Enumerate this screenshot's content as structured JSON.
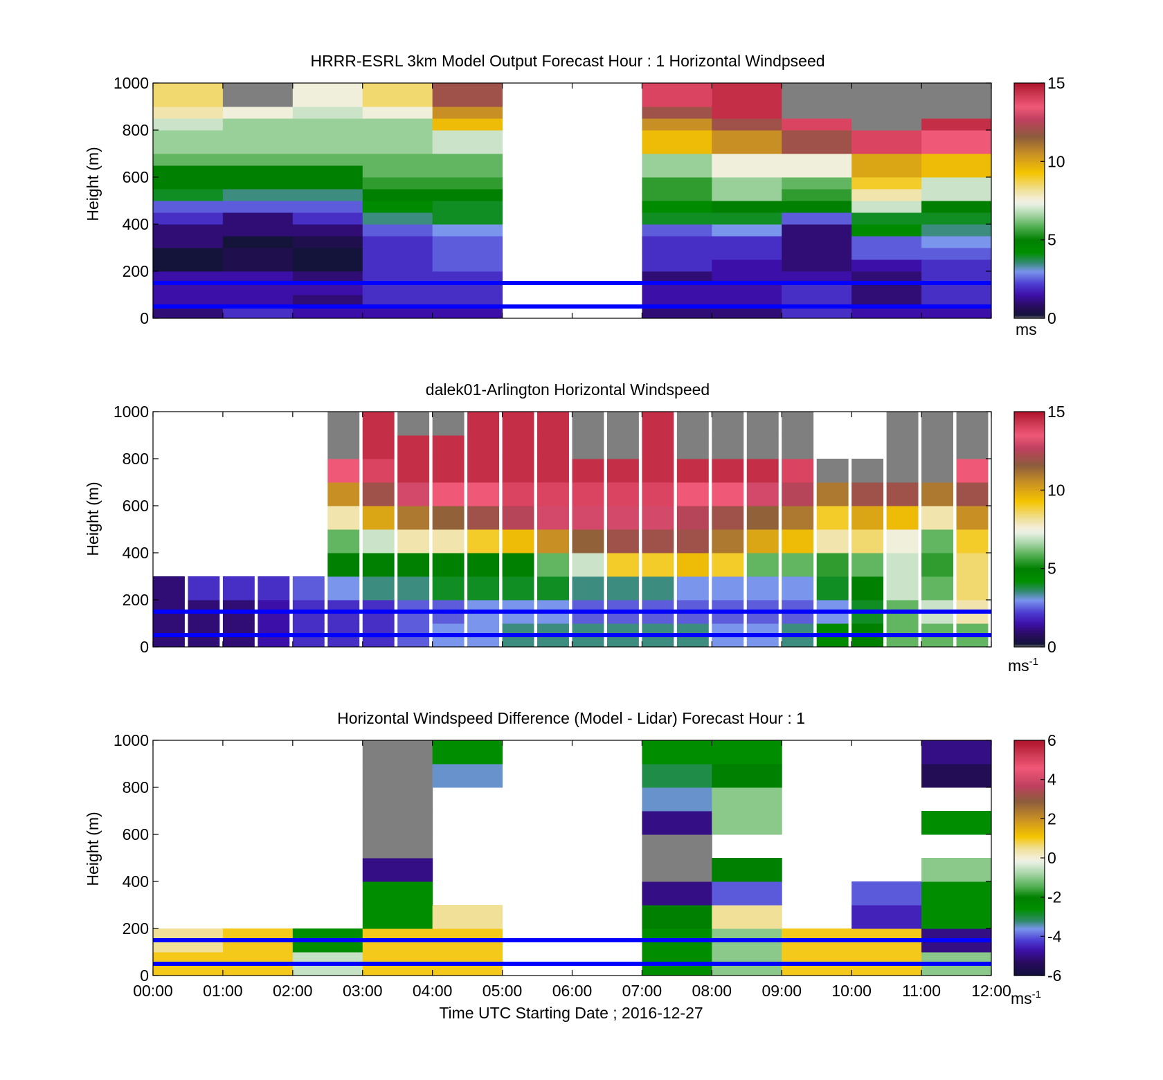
{
  "chart_data": [
    {
      "type": "heatmap",
      "title": "HRRR-ESRL 3km Model Output   Forecast Hour : 1 Horizontal Windpseed",
      "ylabel": "Height (m)",
      "xlim": [
        0,
        12
      ],
      "ylim": [
        0,
        1000
      ],
      "yticks": [
        0,
        200,
        400,
        600,
        800,
        1000
      ],
      "colorbar": {
        "range": [
          0,
          15
        ],
        "ticks": [
          0,
          5,
          10,
          15
        ],
        "unit": "ms",
        "unit_sup": ""
      },
      "reference_lines_m": [
        50,
        150
      ],
      "x_hours": [
        0,
        1,
        2,
        3,
        4,
        7,
        8,
        9,
        10,
        11
      ],
      "y_bins_m": [
        25,
        75,
        125,
        175,
        225,
        275,
        325,
        375,
        425,
        475,
        525,
        575,
        625,
        675,
        725,
        775,
        825,
        875,
        925,
        975
      ],
      "values": [
        [
          1.0,
          2.0,
          1.5,
          1.5,
          1.5,
          1.0,
          1.0,
          2.0,
          1.5,
          1.5
        ],
        [
          1.5,
          1.5,
          1.0,
          2.0,
          2.0,
          1.5,
          1.5,
          2.0,
          1.0,
          2.0
        ],
        [
          1.5,
          1.5,
          1.5,
          2.0,
          2.0,
          1.5,
          1.5,
          2.0,
          1.0,
          2.0
        ],
        [
          1.5,
          1.5,
          1.0,
          2.0,
          2.0,
          1.0,
          1.5,
          1.5,
          1.0,
          2.0
        ],
        [
          0.2,
          0.5,
          0.2,
          2.0,
          2.5,
          2.0,
          1.5,
          1.0,
          1.5,
          2.0
        ],
        [
          0.2,
          0.5,
          0.2,
          2.0,
          2.5,
          2.0,
          2.0,
          1.0,
          2.5,
          2.5
        ],
        [
          1.0,
          0.2,
          0.5,
          2.0,
          2.5,
          2.0,
          2.0,
          1.0,
          2.5,
          3.0
        ],
        [
          1.0,
          1.0,
          1.0,
          2.5,
          3.0,
          2.5,
          3.0,
          1.0,
          4.5,
          3.5
        ],
        [
          2.0,
          1.0,
          2.0,
          3.5,
          4.0,
          4.0,
          4.0,
          2.5,
          4.0,
          4.0
        ],
        [
          2.5,
          2.5,
          2.5,
          4.5,
          4.0,
          4.5,
          5.0,
          5.0,
          7.0,
          5.0
        ],
        [
          4.0,
          3.5,
          3.5,
          5.0,
          5.0,
          5.5,
          6.5,
          5.5,
          8.0,
          7.0
        ],
        [
          5.0,
          5.0,
          5.0,
          5.5,
          5.5,
          5.5,
          6.5,
          6.0,
          9.0,
          7.0
        ],
        [
          5.0,
          5.0,
          5.0,
          6.0,
          6.0,
          6.5,
          7.5,
          7.5,
          10.0,
          9.5
        ],
        [
          6.0,
          6.0,
          6.0,
          6.0,
          6.0,
          6.5,
          7.5,
          7.5,
          10.0,
          9.5
        ],
        [
          6.5,
          6.5,
          6.5,
          6.5,
          7.0,
          9.5,
          10.5,
          12.0,
          14.0,
          13.5
        ],
        [
          6.5,
          6.5,
          6.5,
          6.5,
          7.0,
          9.5,
          10.5,
          12.0,
          14.0,
          13.5
        ],
        [
          7.0,
          6.5,
          6.5,
          6.5,
          9.5,
          10.5,
          12.0,
          14.0,
          15.5,
          14.5
        ],
        [
          8.0,
          7.5,
          7.0,
          7.5,
          10.5,
          12.0,
          14.5,
          15.5,
          15.5,
          15.5
        ],
        [
          8.5,
          15.5,
          7.5,
          8.5,
          12.0,
          14.0,
          14.5,
          15.5,
          15.5,
          15.5
        ],
        [
          8.5,
          15.5,
          7.5,
          8.5,
          12.0,
          14.0,
          14.5,
          15.5,
          15.5,
          15.5
        ]
      ]
    },
    {
      "type": "heatmap",
      "title": "dalek01-Arlington  Horizontal Windspeed",
      "ylabel": "Height (m)",
      "xlim": [
        0,
        12
      ],
      "ylim": [
        0,
        1000
      ],
      "yticks": [
        0,
        200,
        400,
        600,
        800,
        1000
      ],
      "colorbar": {
        "range": [
          0,
          15
        ],
        "ticks": [
          0,
          5,
          10,
          15
        ],
        "unit": "ms",
        "unit_sup": "-1"
      },
      "reference_lines_m": [
        50,
        150
      ],
      "x_hours": [
        0,
        0.5,
        1,
        1.5,
        2,
        2.5,
        3,
        3.5,
        4,
        4.5,
        5,
        5.5,
        6,
        6.5,
        7,
        7.5,
        8,
        8.5,
        9,
        9.5,
        10,
        10.5,
        11,
        11.5
      ],
      "y_bins_m": [
        50,
        150,
        250,
        350,
        450,
        550,
        650,
        750,
        850,
        950
      ],
      "values": [
        [
          1.0,
          1.0,
          1.0,
          1.5,
          2.0,
          2.0,
          2.0,
          2.5,
          3.0,
          3.0,
          3.5,
          3.5,
          3.5,
          3.5,
          3.5,
          3.5,
          3.0,
          3.0,
          3.5,
          4.5,
          5.0,
          6.0,
          6.0,
          6.0
        ],
        [
          1.0,
          1.0,
          1.0,
          1.5,
          2.0,
          2.0,
          2.0,
          2.5,
          2.5,
          3.0,
          3.0,
          3.0,
          2.5,
          2.5,
          2.5,
          2.5,
          2.5,
          2.5,
          2.5,
          3.0,
          4.0,
          6.0,
          7.0,
          8.0
        ],
        [
          1.0,
          2.0,
          2.0,
          2.0,
          2.5,
          3.0,
          3.5,
          3.5,
          4.0,
          4.0,
          4.0,
          4.0,
          3.5,
          3.5,
          3.5,
          3.0,
          3.0,
          3.0,
          3.0,
          4.0,
          5.0,
          7.0,
          6.0,
          8.5
        ],
        [
          null,
          null,
          null,
          null,
          null,
          5.0,
          5.0,
          5.0,
          5.0,
          5.0,
          5.0,
          6.0,
          7.0,
          9.0,
          9.0,
          9.5,
          9.0,
          6.0,
          6.0,
          5.5,
          6.0,
          7.0,
          5.5,
          8.5
        ],
        [
          null,
          null,
          null,
          null,
          null,
          6.0,
          7.0,
          8.0,
          8.0,
          9.0,
          9.5,
          10.5,
          11.5,
          12.0,
          12.0,
          12.0,
          11.0,
          10.0,
          9.5,
          8.0,
          8.5,
          7.5,
          6.0,
          9.0
        ],
        [
          null,
          null,
          null,
          null,
          null,
          8.0,
          10.0,
          11.0,
          11.5,
          12.0,
          12.5,
          13.0,
          13.0,
          13.0,
          13.0,
          12.5,
          12.0,
          11.5,
          11.0,
          9.0,
          10.0,
          9.5,
          8.0,
          10.5
        ],
        [
          null,
          null,
          null,
          null,
          null,
          10.5,
          12.0,
          13.0,
          13.5,
          13.5,
          14.0,
          14.0,
          14.0,
          14.0,
          14.0,
          13.5,
          13.5,
          13.0,
          12.5,
          11.0,
          12.0,
          12.0,
          11.0,
          12.0
        ],
        [
          null,
          null,
          null,
          null,
          null,
          13.5,
          14.0,
          14.5,
          14.5,
          14.5,
          14.5,
          14.5,
          14.5,
          14.5,
          14.5,
          14.5,
          14.5,
          14.5,
          14.0,
          15.5,
          15.5,
          15.5,
          15.5,
          13.5
        ],
        [
          null,
          null,
          null,
          null,
          null,
          15.5,
          14.5,
          14.5,
          14.5,
          14.5,
          14.5,
          14.5,
          15.5,
          15.5,
          14.5,
          15.5,
          15.5,
          15.5,
          15.5,
          null,
          null,
          15.5,
          15.5,
          15.5
        ],
        [
          null,
          null,
          null,
          null,
          null,
          15.5,
          14.5,
          15.5,
          15.5,
          14.5,
          14.5,
          14.5,
          15.5,
          15.5,
          14.5,
          15.5,
          15.5,
          15.5,
          15.5,
          null,
          null,
          15.5,
          15.5,
          15.5
        ]
      ]
    },
    {
      "type": "heatmap",
      "title": "Horizontal Windspeed Difference (Model - Lidar) Forecast Hour : 1",
      "xlabel": "Time UTC  Starting Date ; 2016-12-27",
      "ylabel": "Height (m)",
      "xlim": [
        0,
        12
      ],
      "ylim": [
        0,
        1000
      ],
      "yticks": [
        0,
        200,
        400,
        600,
        800,
        1000
      ],
      "xtick_labels": [
        "00:00",
        "01:00",
        "02:00",
        "03:00",
        "04:00",
        "05:00",
        "06:00",
        "07:00",
        "08:00",
        "09:00",
        "10:00",
        "11:00",
        "12:00"
      ],
      "colorbar": {
        "range": [
          -6,
          6
        ],
        "ticks": [
          -6,
          -4,
          -2,
          0,
          2,
          4,
          6
        ],
        "unit": "ms",
        "unit_sup": "-1"
      },
      "reference_lines_m": [
        50,
        150
      ],
      "x_hours": [
        0,
        1,
        2,
        3,
        4,
        7,
        8,
        9,
        10,
        11
      ],
      "y_bins_m": [
        50,
        150,
        250,
        350,
        450,
        550,
        650,
        750,
        850,
        950
      ],
      "values": [
        [
          1.0,
          1.0,
          -0.5,
          1.0,
          1.0,
          -2.5,
          -1.0,
          1.0,
          1.0,
          -1.0
        ],
        [
          0.5,
          1.0,
          -2.5,
          1.0,
          1.0,
          -2.5,
          -1.0,
          1.0,
          1.0,
          -5.0
        ],
        [
          null,
          null,
          null,
          -2.5,
          0.5,
          -2.0,
          0.5,
          null,
          -4.5,
          -2.5
        ],
        [
          null,
          null,
          null,
          -2.5,
          null,
          -5.0,
          -4.0,
          null,
          -4.0,
          -2.5
        ],
        [
          null,
          null,
          null,
          -5.0,
          null,
          -7.0,
          -2.0,
          null,
          null,
          -1.0
        ],
        [
          null,
          null,
          null,
          -7.0,
          null,
          -7.0,
          null,
          null,
          null,
          null
        ],
        [
          null,
          null,
          null,
          -7.0,
          null,
          -5.0,
          -1.0,
          null,
          null,
          -2.5
        ],
        [
          null,
          null,
          null,
          -7.0,
          null,
          -3.5,
          -1.0,
          null,
          null,
          null
        ],
        [
          null,
          null,
          null,
          -7.0,
          -3.5,
          -3.0,
          -2.0,
          null,
          null,
          -5.5
        ],
        [
          null,
          null,
          null,
          -7.0,
          -2.5,
          -2.5,
          -2.5,
          null,
          null,
          -5.0
        ]
      ]
    }
  ],
  "colormaps": {
    "speed": [
      [
        -0.5,
        "#7f7f7f"
      ],
      [
        0.0,
        "#7f7f7f"
      ],
      [
        0.2,
        "#14143a"
      ],
      [
        0.8,
        "#2a0c60"
      ],
      [
        1.5,
        "#3c10a8"
      ],
      [
        2.2,
        "#4c3cd2"
      ],
      [
        3.0,
        "#7a95ec"
      ],
      [
        3.6,
        "#2f8a6a"
      ],
      [
        4.2,
        "#009000"
      ],
      [
        5.0,
        "#008000"
      ],
      [
        5.8,
        "#4cac4c"
      ],
      [
        6.6,
        "#a4d4a4"
      ],
      [
        7.3,
        "#e8f0e4"
      ],
      [
        7.6,
        "#f4eed8"
      ],
      [
        8.2,
        "#f0e098"
      ],
      [
        9.3,
        "#f5c400"
      ],
      [
        10.5,
        "#c89024"
      ],
      [
        11.6,
        "#8c5c3c"
      ],
      [
        12.7,
        "#c04060"
      ],
      [
        13.5,
        "#f05878"
      ],
      [
        14.4,
        "#c8344c"
      ],
      [
        15.0,
        "#b0142c"
      ],
      [
        15.2,
        "#7f7f7f"
      ],
      [
        16.0,
        "#7f7f7f"
      ]
    ],
    "diff": [
      [
        -6.6,
        "#7f7f7f"
      ],
      [
        -6.2,
        "#7f7f7f"
      ],
      [
        -6.0,
        "#10103a"
      ],
      [
        -5.3,
        "#2a0c60"
      ],
      [
        -4.7,
        "#3c10a8"
      ],
      [
        -4.2,
        "#4c3cd2"
      ],
      [
        -3.6,
        "#7a95ec"
      ],
      [
        -3.2,
        "#2f8a6a"
      ],
      [
        -2.6,
        "#009000"
      ],
      [
        -2.0,
        "#008000"
      ],
      [
        -1.5,
        "#4cac4c"
      ],
      [
        -0.8,
        "#a4d4a4"
      ],
      [
        -0.2,
        "#e8f0e4"
      ],
      [
        0.0,
        "#f4eed8"
      ],
      [
        0.5,
        "#f0e098"
      ],
      [
        1.1,
        "#f5c400"
      ],
      [
        2.0,
        "#c89024"
      ],
      [
        2.9,
        "#8c5c3c"
      ],
      [
        3.7,
        "#c04060"
      ],
      [
        4.6,
        "#f05878"
      ],
      [
        5.4,
        "#c8344c"
      ],
      [
        6.0,
        "#b0142c"
      ],
      [
        6.2,
        "#7f7f7f"
      ],
      [
        7.2,
        "#7f7f7f"
      ]
    ]
  },
  "reference_line_color": "#0000ff"
}
